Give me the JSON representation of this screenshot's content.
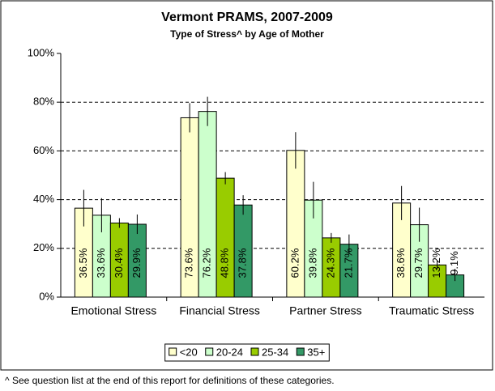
{
  "chart_data": {
    "type": "bar",
    "title": "Vermont PRAMS, 2007-2009",
    "subtitle": "Type of Stress^ by Age of Mother",
    "categories": [
      "Emotional Stress",
      "Financial Stress",
      "Partner Stress",
      "Traumatic Stress"
    ],
    "series": [
      {
        "name": "<20",
        "color": "#ffffcc",
        "values": [
          36.5,
          73.6,
          60.2,
          38.6
        ],
        "value_labels": [
          "36.5%",
          "73.6%",
          "60.2%",
          "38.6%"
        ],
        "errors": [
          7.5,
          6,
          7.5,
          7
        ]
      },
      {
        "name": "20-24",
        "color": "#ccffcc",
        "values": [
          33.6,
          76.2,
          39.8,
          29.7
        ],
        "value_labels": [
          "33.6%",
          "76.2%",
          "39.8%",
          "29.7%"
        ],
        "errors": [
          7,
          6,
          7.5,
          7
        ]
      },
      {
        "name": "25-34",
        "color": "#99cc00",
        "values": [
          30.4,
          48.8,
          24.3,
          13.2
        ],
        "value_labels": [
          "30.4%",
          "48.8%",
          "24.3%",
          "13.2%"
        ],
        "errors": [
          2,
          2.5,
          2,
          1.8
        ]
      },
      {
        "name": "35+",
        "color": "#339966",
        "values": [
          29.9,
          37.8,
          21.7,
          9.1
        ],
        "value_labels": [
          "29.9%",
          "37.8%",
          "21.7%",
          "9.1%"
        ],
        "errors": [
          4,
          4,
          4,
          2.5
        ]
      }
    ],
    "ylim": [
      0,
      100
    ],
    "yticks": [
      {
        "value": 0,
        "label": "0%"
      },
      {
        "value": 20,
        "label": "20%"
      },
      {
        "value": 40,
        "label": "40%"
      },
      {
        "value": 60,
        "label": "60%"
      },
      {
        "value": 80,
        "label": "80%"
      },
      {
        "value": 100,
        "label": "100%"
      }
    ],
    "grid": true,
    "legend": "bottom",
    "footnote": "^ See question list at the end of this report for definitions of these categories."
  }
}
